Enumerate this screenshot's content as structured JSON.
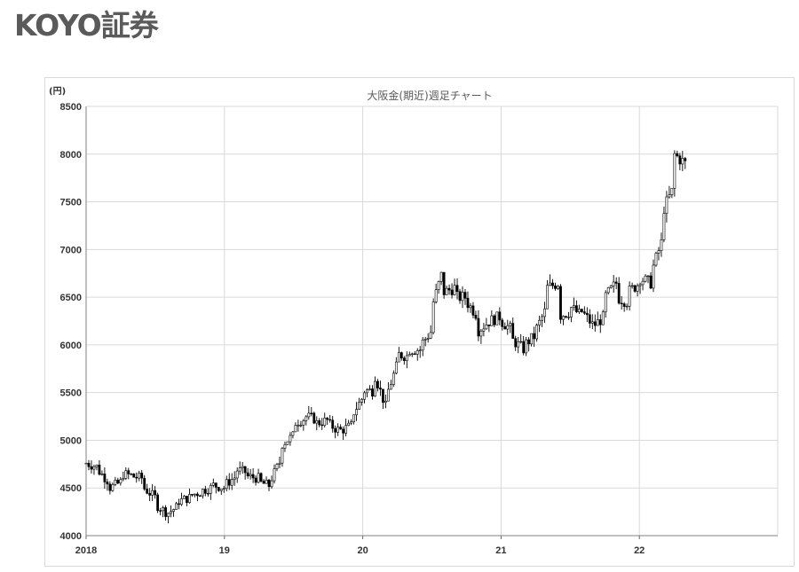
{
  "header": {
    "logo_text": "KOYO証券"
  },
  "chart_data": {
    "type": "candlestick",
    "title": "大阪金(期近)週足チャート",
    "ylabel": "(円)",
    "xlabel": "",
    "ylim": [
      4000,
      8500
    ],
    "y_ticks": [
      4000,
      4500,
      5000,
      5500,
      6000,
      6500,
      7000,
      7500,
      8000,
      8500
    ],
    "x_ticks": [
      "2018",
      "19",
      "20",
      "21",
      "22"
    ],
    "x_tick_dates": [
      "2018-01",
      "2019-01",
      "2020-01",
      "2021-01",
      "2022-01"
    ],
    "x_range": [
      "2018-01",
      "2023-01"
    ],
    "grid": true,
    "colors": {
      "up": "#ffffff",
      "down": "#000000",
      "wick": "#000000",
      "grid": "#d9d9d9"
    },
    "series": [
      {
        "name": "",
        "anchors": [
          [
            "2018-01",
            4620
          ],
          [
            "2018-01",
            4760
          ],
          [
            "2018-02",
            4720
          ],
          [
            "2018-02",
            4690
          ],
          [
            "2018-03",
            4560
          ],
          [
            "2018-03",
            4500
          ],
          [
            "2018-04",
            4560
          ],
          [
            "2018-04",
            4650
          ],
          [
            "2018-05",
            4630
          ],
          [
            "2018-05",
            4620
          ],
          [
            "2018-06",
            4600
          ],
          [
            "2018-06",
            4500
          ],
          [
            "2018-07",
            4400
          ],
          [
            "2018-07",
            4330
          ],
          [
            "2018-08",
            4240
          ],
          [
            "2018-08",
            4230
          ],
          [
            "2018-09",
            4310
          ],
          [
            "2018-09",
            4360
          ],
          [
            "2018-10",
            4400
          ],
          [
            "2018-10",
            4420
          ],
          [
            "2018-11",
            4460
          ],
          [
            "2018-11",
            4470
          ],
          [
            "2018-12",
            4510
          ],
          [
            "2018-12",
            4530
          ],
          [
            "2019-01",
            4500
          ],
          [
            "2019-01",
            4530
          ],
          [
            "2019-02",
            4620
          ],
          [
            "2019-02",
            4690
          ],
          [
            "2019-03",
            4660
          ],
          [
            "2019-03",
            4620
          ],
          [
            "2019-04",
            4600
          ],
          [
            "2019-04",
            4560
          ],
          [
            "2019-05",
            4520
          ],
          [
            "2019-05",
            4580
          ],
          [
            "2019-06",
            4820
          ],
          [
            "2019-06",
            4960
          ],
          [
            "2019-07",
            5050
          ],
          [
            "2019-07",
            5180
          ],
          [
            "2019-08",
            5230
          ],
          [
            "2019-08",
            5250
          ],
          [
            "2019-09",
            5220
          ],
          [
            "2019-09",
            5180
          ],
          [
            "2019-10",
            5210
          ],
          [
            "2019-10",
            5170
          ],
          [
            "2019-11",
            5100
          ],
          [
            "2019-11",
            5100
          ],
          [
            "2019-12",
            5150
          ],
          [
            "2019-12",
            5250
          ],
          [
            "2020-01",
            5450
          ],
          [
            "2020-01",
            5520
          ],
          [
            "2020-02",
            5520
          ],
          [
            "2020-02",
            5700
          ],
          [
            "2020-03",
            5350
          ],
          [
            "2020-03",
            5450
          ],
          [
            "2020-04",
            5800
          ],
          [
            "2020-04",
            5900
          ],
          [
            "2020-05",
            5880
          ],
          [
            "2020-05",
            5950
          ],
          [
            "2020-06",
            5950
          ],
          [
            "2020-06",
            6000
          ],
          [
            "2020-07",
            6150
          ],
          [
            "2020-07",
            6400
          ],
          [
            "2020-08",
            6800
          ],
          [
            "2020-08",
            6550
          ],
          [
            "2020-09",
            6600
          ],
          [
            "2020-09",
            6500
          ],
          [
            "2020-10",
            6500
          ],
          [
            "2020-10",
            6450
          ],
          [
            "2020-11",
            6300
          ],
          [
            "2020-11",
            6150
          ],
          [
            "2020-12",
            6250
          ],
          [
            "2020-12",
            6250
          ],
          [
            "2021-01",
            6300
          ],
          [
            "2021-01",
            6250
          ],
          [
            "2021-02",
            6150
          ],
          [
            "2021-02",
            6050
          ],
          [
            "2021-03",
            5950
          ],
          [
            "2021-03",
            6000
          ],
          [
            "2021-04",
            6100
          ],
          [
            "2021-04",
            6150
          ],
          [
            "2021-05",
            6400
          ],
          [
            "2021-05",
            6600
          ],
          [
            "2021-06",
            6650
          ],
          [
            "2021-06",
            6300
          ],
          [
            "2021-07",
            6350
          ],
          [
            "2021-07",
            6400
          ],
          [
            "2021-08",
            6300
          ],
          [
            "2021-08",
            6350
          ],
          [
            "2021-09",
            6200
          ],
          [
            "2021-09",
            6200
          ],
          [
            "2021-10",
            6300
          ],
          [
            "2021-10",
            6500
          ],
          [
            "2021-11",
            6650
          ],
          [
            "2021-11",
            6500
          ],
          [
            "2021-12",
            6450
          ],
          [
            "2021-12",
            6550
          ],
          [
            "2022-01",
            6650
          ],
          [
            "2022-01",
            6700
          ],
          [
            "2022-02",
            6650
          ],
          [
            "2022-02",
            6750
          ],
          [
            "2022-03",
            7100
          ],
          [
            "2022-03",
            7400
          ],
          [
            "2022-04",
            7650
          ],
          [
            "2022-04",
            8000
          ],
          [
            "2022-05",
            7900
          ]
        ]
      }
    ]
  }
}
